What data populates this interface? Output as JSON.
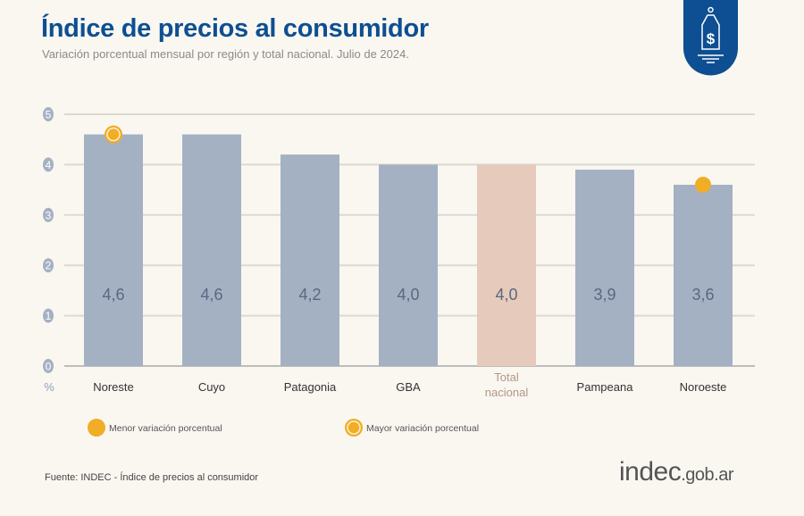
{
  "header": {
    "title": "Índice de precios al consumidor",
    "subtitle": "Variación porcentual mensual por región y total nacional. Julio de 2024."
  },
  "logo_icon": "price-tag-dollar-icon",
  "chart_data": {
    "type": "bar",
    "categories": [
      "Noreste",
      "Cuyo",
      "Patagonia",
      "GBA",
      "Total nacional",
      "Pampeana",
      "Noroeste"
    ],
    "values": [
      4.6,
      4.6,
      4.2,
      4.0,
      4.0,
      3.9,
      3.6
    ],
    "value_labels": [
      "4,6",
      "4,6",
      "4,2",
      "4,0",
      "4,0",
      "3,9",
      "3,6"
    ],
    "ylabel": "%",
    "ylim": [
      0,
      5
    ],
    "yticks": [
      "0",
      "1",
      "2",
      "3",
      "4",
      "5"
    ],
    "grid": true,
    "colors": {
      "region": "#a4b1c3",
      "total": "#e6cabb",
      "marker": "#f0ad25"
    },
    "highlight_max": "Noreste",
    "highlight_min": "Noroeste",
    "legend": {
      "placement": "bottom",
      "min_label": "Menor variación porcentual",
      "max_label": "Mayor variación porcentual"
    }
  },
  "footer": {
    "source": "Fuente: INDEC - Índice de precios al consumidor",
    "brand_main": "indec",
    "brand_suffix": ".gob.ar"
  }
}
